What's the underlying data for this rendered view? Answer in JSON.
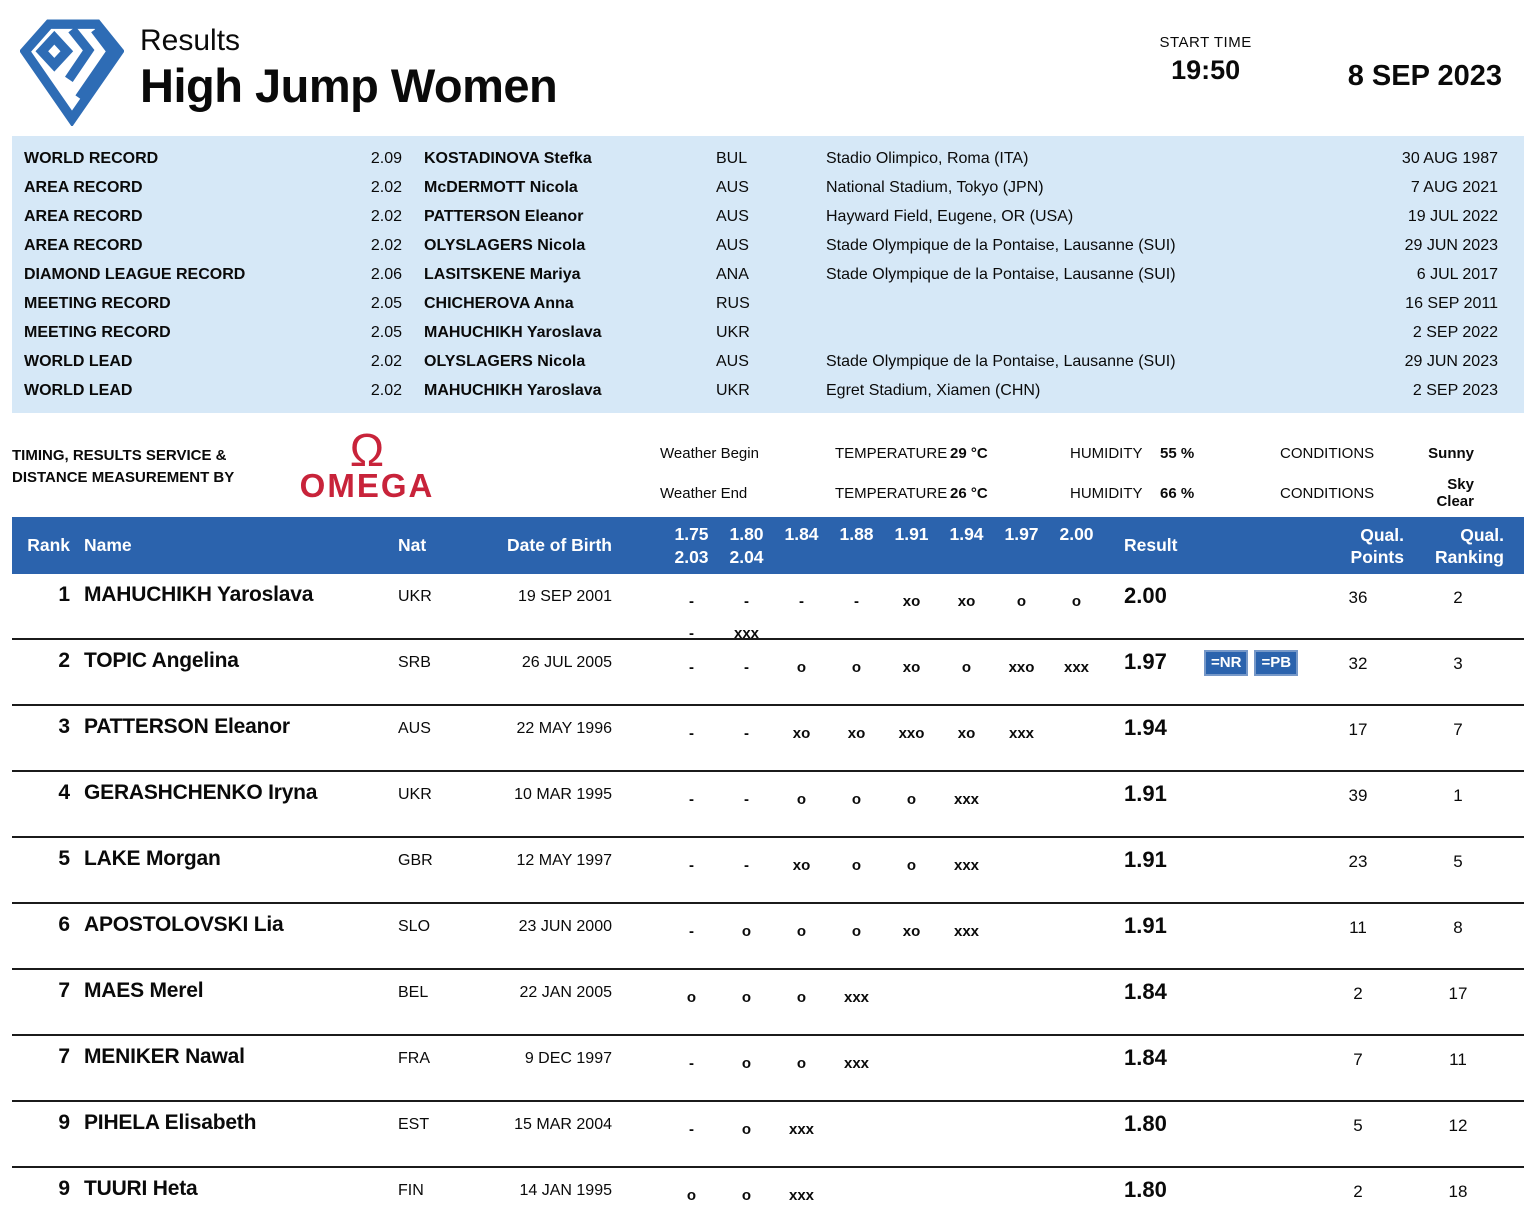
{
  "header": {
    "subtitle": "Results",
    "title": "High Jump Women",
    "start_time_label": "START TIME",
    "start_time": "19:50",
    "date": "8 SEP 2023"
  },
  "records": [
    {
      "label": "WORLD RECORD",
      "mark": "2.09",
      "name": "KOSTADINOVA Stefka",
      "nat": "BUL",
      "venue": "Stadio Olimpico, Roma (ITA)",
      "date": "30 AUG 1987"
    },
    {
      "label": "AREA RECORD",
      "mark": "2.02",
      "name": "McDERMOTT Nicola",
      "nat": "AUS",
      "venue": "National Stadium, Tokyo (JPN)",
      "date": "7 AUG 2021"
    },
    {
      "label": "AREA RECORD",
      "mark": "2.02",
      "name": "PATTERSON Eleanor",
      "nat": "AUS",
      "venue": "Hayward Field, Eugene, OR (USA)",
      "date": "19 JUL 2022"
    },
    {
      "label": "AREA RECORD",
      "mark": "2.02",
      "name": "OLYSLAGERS Nicola",
      "nat": "AUS",
      "venue": "Stade Olympique de la Pontaise, Lausanne (SUI)",
      "date": "29 JUN 2023"
    },
    {
      "label": "DIAMOND LEAGUE RECORD",
      "mark": "2.06",
      "name": "LASITSKENE Mariya",
      "nat": "ANA",
      "venue": "Stade Olympique de la Pontaise, Lausanne (SUI)",
      "date": "6 JUL 2017"
    },
    {
      "label": "MEETING RECORD",
      "mark": "2.05",
      "name": "CHICHEROVA Anna",
      "nat": "RUS",
      "venue": "",
      "date": "16 SEP 2011"
    },
    {
      "label": "MEETING RECORD",
      "mark": "2.05",
      "name": "MAHUCHIKH Yaroslava",
      "nat": "UKR",
      "venue": "",
      "date": "2 SEP 2022"
    },
    {
      "label": "WORLD LEAD",
      "mark": "2.02",
      "name": "OLYSLAGERS Nicola",
      "nat": "AUS",
      "venue": "Stade Olympique de la Pontaise, Lausanne (SUI)",
      "date": "29 JUN 2023"
    },
    {
      "label": "WORLD LEAD",
      "mark": "2.02",
      "name": "MAHUCHIKH Yaroslava",
      "nat": "UKR",
      "venue": "Egret Stadium, Xiamen (CHN)",
      "date": "2 SEP 2023"
    }
  ],
  "sponsor": {
    "line1": "TIMING, RESULTS SERVICE &",
    "line2": "DISTANCE MEASUREMENT BY",
    "brand_symbol": "Ω",
    "brand": "OMEGA"
  },
  "weather": {
    "rows": [
      {
        "label": "Weather Begin",
        "temperature_label": "TEMPERATURE",
        "temperature": "29 °C",
        "humidity_label": "HUMIDITY",
        "humidity": "55 %",
        "conditions_label": "CONDITIONS",
        "conditions": "Sunny"
      },
      {
        "label": "Weather End",
        "temperature_label": "TEMPERATURE",
        "temperature": "26 °C",
        "humidity_label": "HUMIDITY",
        "humidity": "66 %",
        "conditions_label": "CONDITIONS",
        "conditions": "Sky Clear"
      }
    ]
  },
  "results_table": {
    "columns": {
      "rank": "Rank",
      "name": "Name",
      "nat": "Nat",
      "dob": "Date of Birth",
      "result": "Result",
      "qual_points_line1": "Qual.",
      "qual_points_line2": "Points",
      "qual_ranking_line1": "Qual.",
      "qual_ranking_line2": "Ranking"
    },
    "heights_row1": [
      "1.75",
      "1.80",
      "1.84",
      "1.88",
      "1.91",
      "1.94",
      "1.97",
      "2.00"
    ],
    "heights_row2": [
      "2.03",
      "2.04"
    ],
    "rows": [
      {
        "rank": "1",
        "name": "MAHUCHIKH Yaroslava",
        "nat": "UKR",
        "dob": "19 SEP 2001",
        "attempts": [
          "-",
          "-",
          "-",
          "-",
          "xo",
          "xo",
          "o",
          "o"
        ],
        "attempts2": [
          "-",
          "xxx"
        ],
        "result": "2.00",
        "badges": [],
        "qual_points": "36",
        "qual_ranking": "2"
      },
      {
        "rank": "2",
        "name": "TOPIC Angelina",
        "nat": "SRB",
        "dob": "26 JUL 2005",
        "attempts": [
          "-",
          "-",
          "o",
          "o",
          "xo",
          "o",
          "xxo",
          "xxx"
        ],
        "attempts2": [],
        "result": "1.97",
        "badges": [
          "=NR",
          "=PB"
        ],
        "qual_points": "32",
        "qual_ranking": "3"
      },
      {
        "rank": "3",
        "name": "PATTERSON Eleanor",
        "nat": "AUS",
        "dob": "22 MAY 1996",
        "attempts": [
          "-",
          "-",
          "xo",
          "xo",
          "xxo",
          "xo",
          "xxx"
        ],
        "attempts2": [],
        "result": "1.94",
        "badges": [],
        "qual_points": "17",
        "qual_ranking": "7"
      },
      {
        "rank": "4",
        "name": "GERASHCHENKO Iryna",
        "nat": "UKR",
        "dob": "10 MAR 1995",
        "attempts": [
          "-",
          "-",
          "o",
          "o",
          "o",
          "xxx"
        ],
        "attempts2": [],
        "result": "1.91",
        "badges": [],
        "qual_points": "39",
        "qual_ranking": "1"
      },
      {
        "rank": "5",
        "name": "LAKE Morgan",
        "nat": "GBR",
        "dob": "12 MAY 1997",
        "attempts": [
          "-",
          "-",
          "xo",
          "o",
          "o",
          "xxx"
        ],
        "attempts2": [],
        "result": "1.91",
        "badges": [],
        "qual_points": "23",
        "qual_ranking": "5"
      },
      {
        "rank": "6",
        "name": "APOSTOLOVSKI Lia",
        "nat": "SLO",
        "dob": "23 JUN 2000",
        "attempts": [
          "-",
          "o",
          "o",
          "o",
          "xo",
          "xxx"
        ],
        "attempts2": [],
        "result": "1.91",
        "badges": [],
        "qual_points": "11",
        "qual_ranking": "8"
      },
      {
        "rank": "7",
        "name": "MAES Merel",
        "nat": "BEL",
        "dob": "22 JAN 2005",
        "attempts": [
          "o",
          "o",
          "o",
          "xxx"
        ],
        "attempts2": [],
        "result": "1.84",
        "badges": [],
        "qual_points": "2",
        "qual_ranking": "17"
      },
      {
        "rank": "7",
        "name": "MENIKER Nawal",
        "nat": "FRA",
        "dob": "9 DEC 1997",
        "attempts": [
          "-",
          "o",
          "o",
          "xxx"
        ],
        "attempts2": [],
        "result": "1.84",
        "badges": [],
        "qual_points": "7",
        "qual_ranking": "11"
      },
      {
        "rank": "9",
        "name": "PIHELA Elisabeth",
        "nat": "EST",
        "dob": "15 MAR 2004",
        "attempts": [
          "-",
          "o",
          "xxx"
        ],
        "attempts2": [],
        "result": "1.80",
        "badges": [],
        "qual_points": "5",
        "qual_ranking": "12"
      },
      {
        "rank": "9",
        "name": "TUURI Heta",
        "nat": "FIN",
        "dob": "14 JAN 1995",
        "attempts": [
          "o",
          "o",
          "xxx"
        ],
        "attempts2": [],
        "result": "1.80",
        "badges": [],
        "qual_points": "2",
        "qual_ranking": "18"
      }
    ]
  },
  "colors": {
    "accent_blue": "#2b63ad",
    "panel_blue": "#d6e8f7",
    "omega_red": "#c8233a"
  }
}
